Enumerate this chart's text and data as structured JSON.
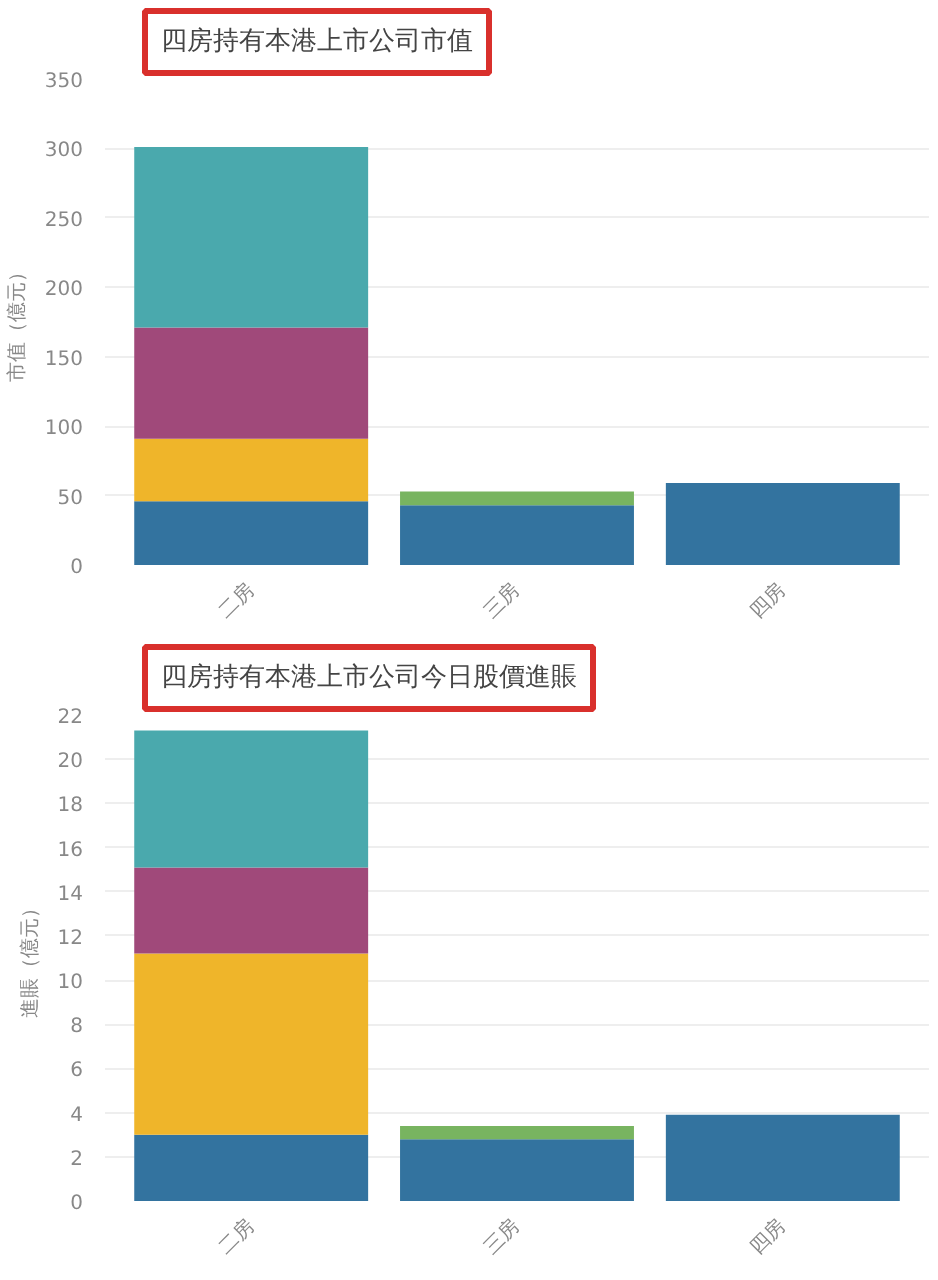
{
  "chart_data": [
    {
      "type": "bar",
      "title": "四房持有本港上市公司市值",
      "ylabel": "市值（億元）",
      "categories": [
        "二房",
        "三房",
        "四房"
      ],
      "stacked": true,
      "ylim": [
        0,
        350
      ],
      "yticks": [
        0,
        50,
        100,
        150,
        200,
        250,
        300,
        350
      ],
      "grid": "y",
      "series": [
        {
          "color": "#33739f",
          "values": [
            46,
            43,
            59
          ]
        },
        {
          "color": "#78b460",
          "values": [
            null,
            10,
            null
          ]
        },
        {
          "color": "#efb52a",
          "values": [
            45,
            null,
            null
          ]
        },
        {
          "color": "#a0497a",
          "values": [
            80,
            null,
            null
          ]
        },
        {
          "color": "#4aa9ad",
          "values": [
            130,
            null,
            null
          ]
        }
      ]
    },
    {
      "type": "bar",
      "title": "四房持有本港上市公司今日股價進賬",
      "ylabel": "進賬（億元）",
      "categories": [
        "二房",
        "三房",
        "四房"
      ],
      "stacked": true,
      "ylim": [
        0,
        22
      ],
      "yticks": [
        0,
        2,
        4,
        6,
        8,
        10,
        12,
        14,
        16,
        18,
        20,
        22
      ],
      "grid": "y",
      "series": [
        {
          "color": "#33739f",
          "values": [
            3.0,
            2.8,
            3.9
          ]
        },
        {
          "color": "#78b460",
          "values": [
            null,
            0.6,
            null
          ]
        },
        {
          "color": "#efb52a",
          "values": [
            8.2,
            null,
            null
          ]
        },
        {
          "color": "#a0497a",
          "values": [
            3.9,
            null,
            null
          ]
        },
        {
          "color": "#4aa9ad",
          "values": [
            6.2,
            null,
            null
          ]
        }
      ]
    }
  ]
}
